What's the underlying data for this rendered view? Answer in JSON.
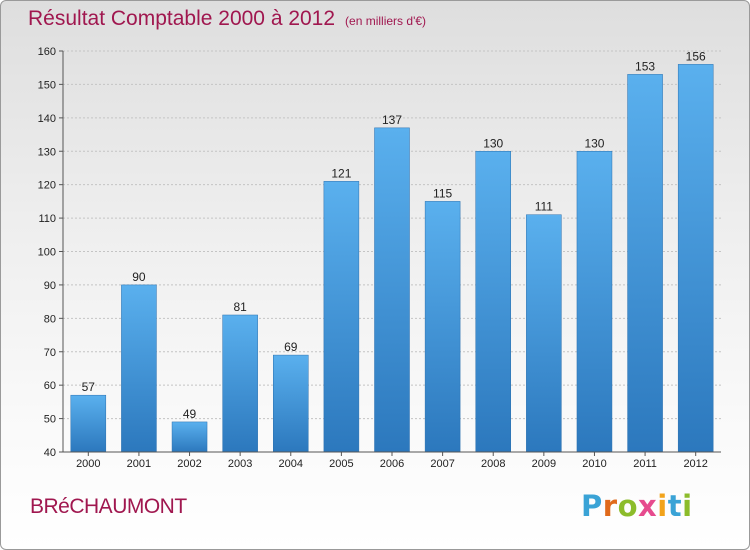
{
  "title": "Résultat Comptable 2000 à 2012",
  "subtitle": "(en milliers d'€)",
  "town": "BRéCHAUMONT",
  "logo": {
    "text": "Proxiti",
    "colors": [
      "#3aa3d6",
      "#e06a1b",
      "#8cbc2b",
      "#e64b8e",
      "#f2a31b",
      "#3aa3d6",
      "#8cbc2b"
    ]
  },
  "chart_data": {
    "type": "bar",
    "categories": [
      "2000",
      "2001",
      "2002",
      "2003",
      "2004",
      "2005",
      "2006",
      "2007",
      "2008",
      "2009",
      "2010",
      "2011",
      "2012"
    ],
    "values": [
      57,
      90,
      49,
      81,
      69,
      121,
      137,
      115,
      130,
      111,
      130,
      153,
      156
    ],
    "ylim": [
      40,
      160
    ],
    "yticks": [
      40,
      50,
      60,
      70,
      80,
      90,
      100,
      110,
      120,
      130,
      140,
      150,
      160
    ],
    "grid": true,
    "bar_color": "#3d8fd1"
  }
}
